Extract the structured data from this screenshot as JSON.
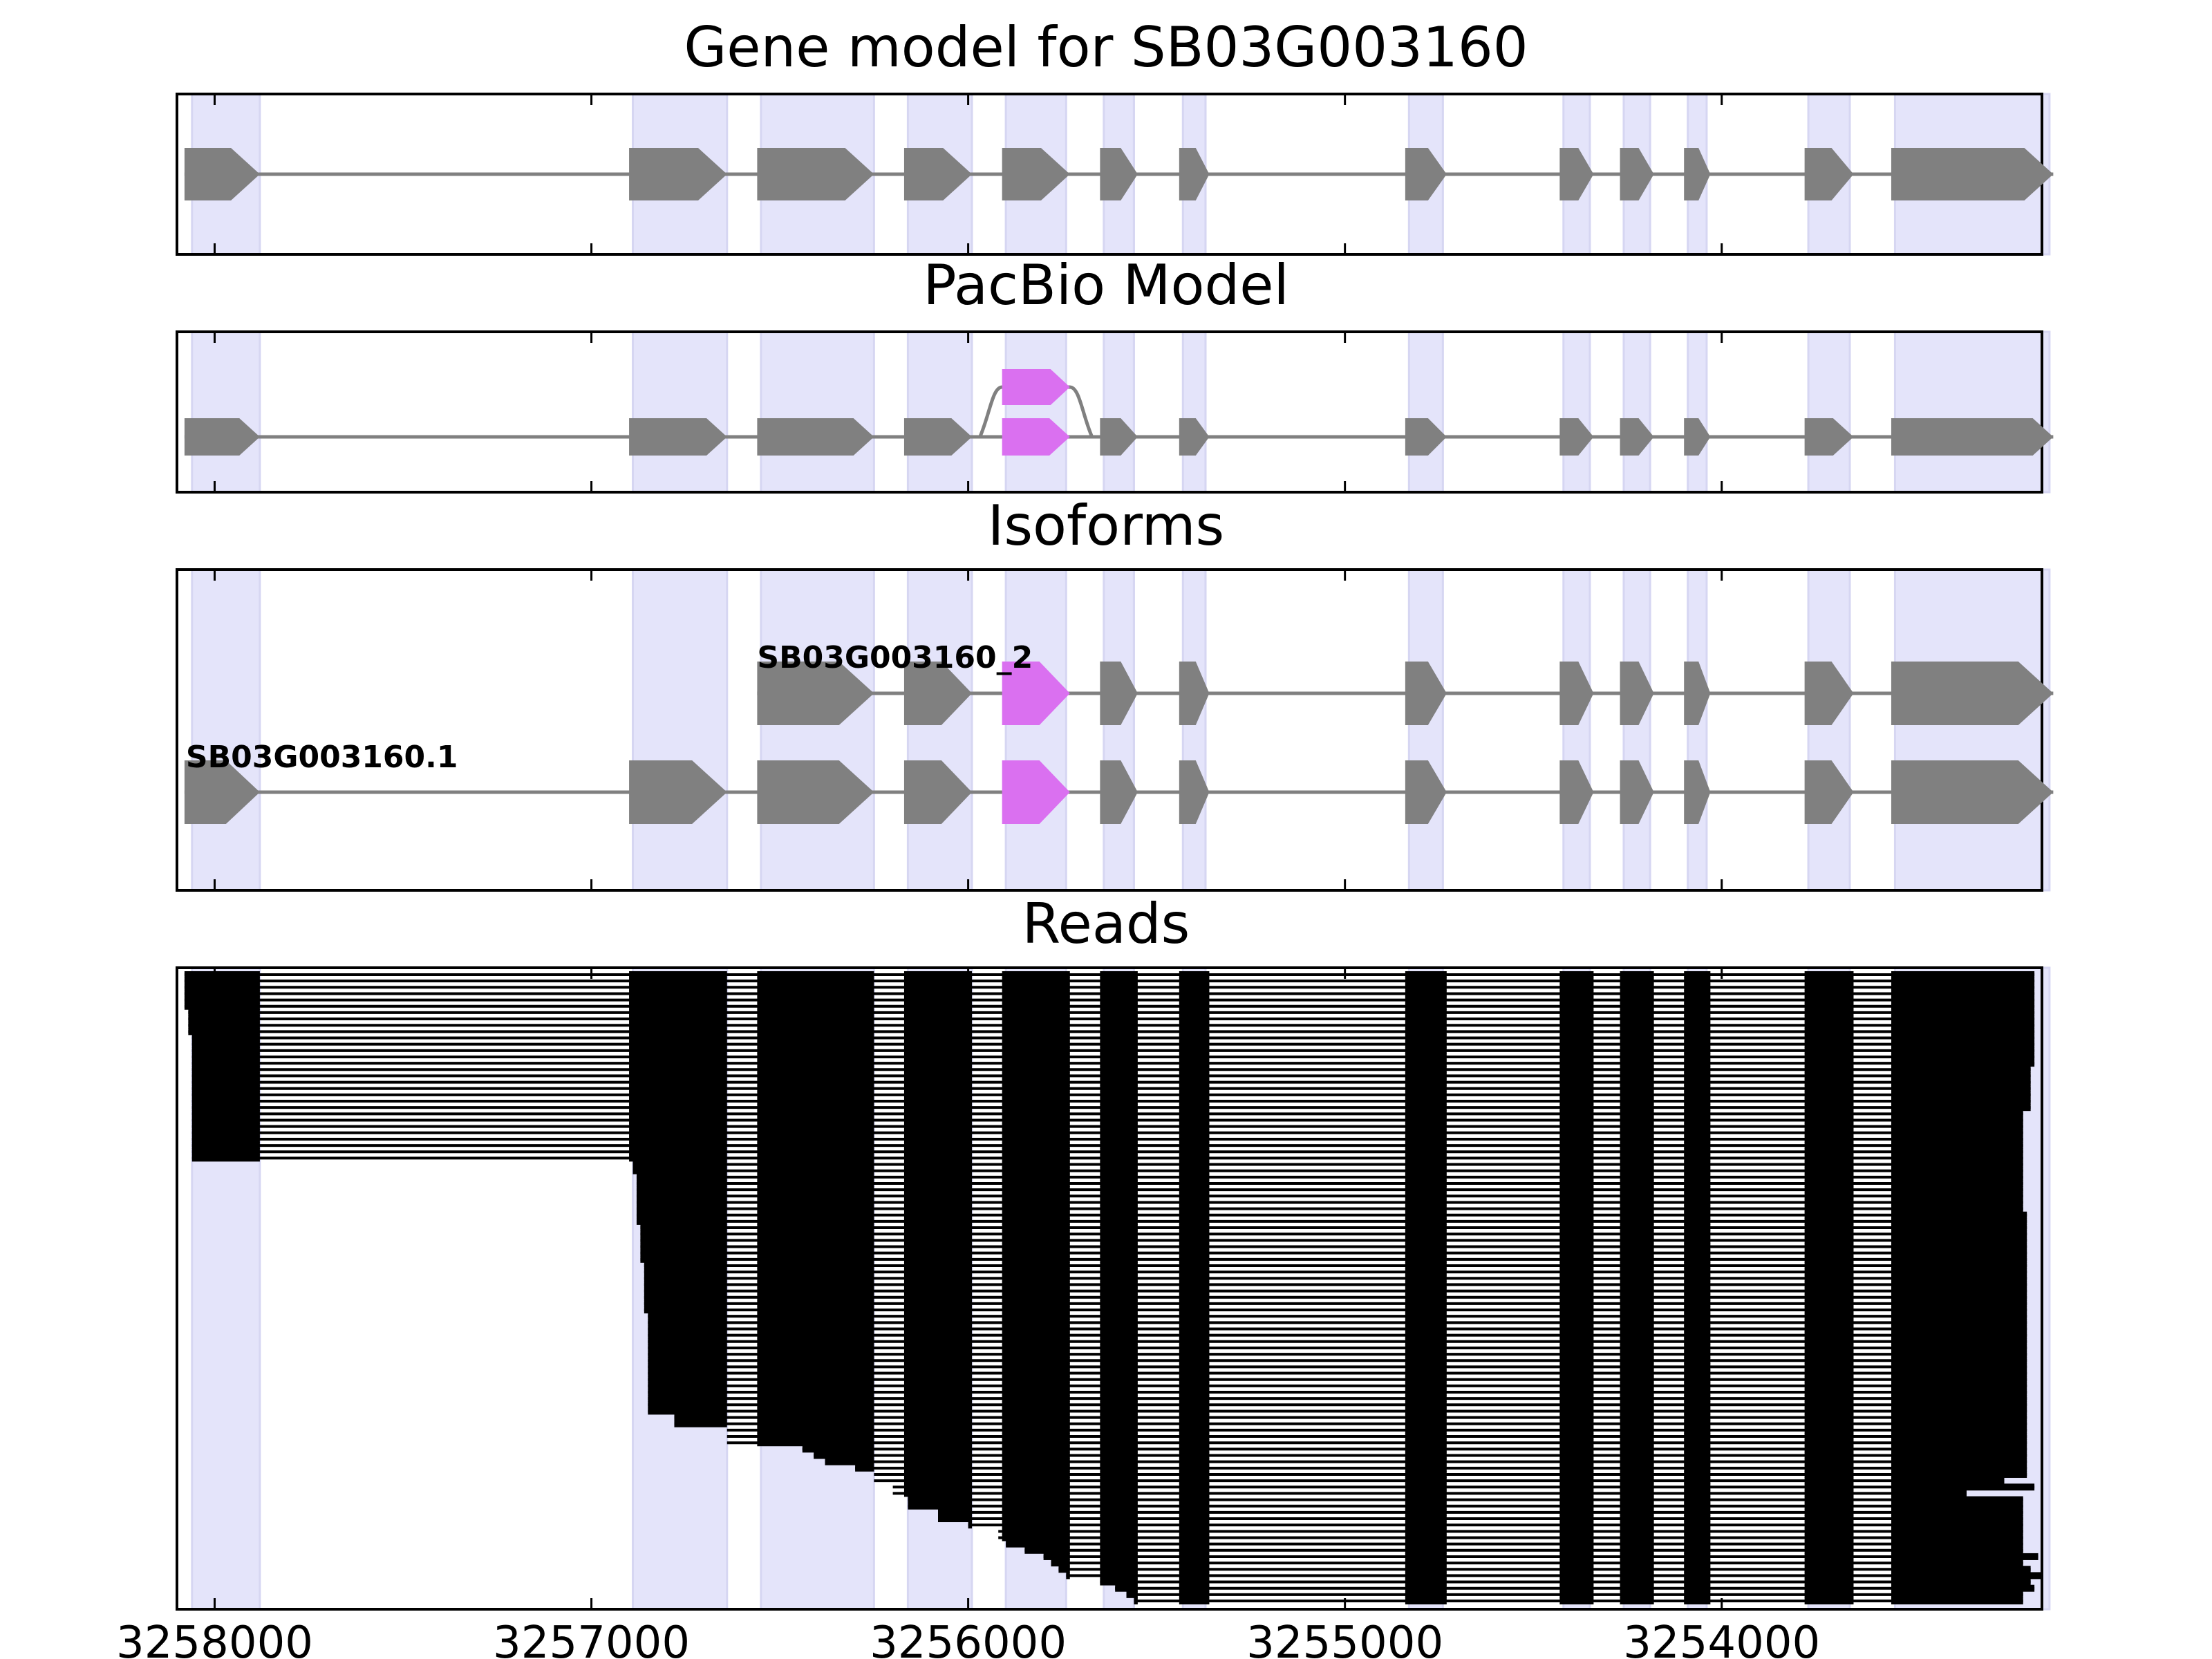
{
  "figure": {
    "gene_id": "SB03G003160",
    "xaxis": {
      "min": 3258100,
      "max": 3253150,
      "reversed": true,
      "ticks": [
        3258000,
        3257000,
        3256000,
        3255000,
        3254000
      ],
      "tick_labels": [
        "3258000",
        "3257000",
        "3256000",
        "3255000",
        "3254000"
      ]
    },
    "colors": {
      "exon": "#808080",
      "intron": "#808080",
      "alt_exon": "#DA70F0",
      "highlight": "#E4E4FA",
      "read": "#000000",
      "frame": "#000000"
    },
    "highlight_regions": [
      [
        3258060,
        3257880
      ],
      [
        3256890,
        3256640
      ],
      [
        3256550,
        3256250
      ],
      [
        3256160,
        3255990
      ],
      [
        3255900,
        3255740
      ],
      [
        3255640,
        3255560
      ],
      [
        3255430,
        3255370
      ],
      [
        3254830,
        3254740
      ],
      [
        3254420,
        3254350
      ],
      [
        3254260,
        3254190
      ],
      [
        3254090,
        3254040
      ],
      [
        3253770,
        3253660
      ],
      [
        3253540,
        3253130
      ]
    ]
  },
  "panels": {
    "gene_model": {
      "title": "Gene model for SB03G003160",
      "transcripts": [
        {
          "strand": "-",
          "exons": [
            [
              3258080,
              3257880
            ],
            [
              3256900,
              3256640
            ],
            [
              3256560,
              3256250
            ],
            [
              3256170,
              3255990
            ],
            [
              3255910,
              3255730
            ],
            [
              3255650,
              3255550
            ],
            [
              3255440,
              3255360
            ],
            [
              3254840,
              3254730
            ],
            [
              3254430,
              3254340
            ],
            [
              3254270,
              3254180
            ],
            [
              3254100,
              3254030
            ],
            [
              3253780,
              3253650
            ],
            [
              3253550,
              3253120
            ]
          ]
        }
      ]
    },
    "pacbio": {
      "title": "PacBio Model",
      "exons": [
        [
          3258080,
          3257880
        ],
        [
          3256900,
          3256640
        ],
        [
          3256560,
          3256250
        ],
        [
          3256170,
          3255990
        ],
        [
          3255910,
          3255730
        ],
        [
          3255650,
          3255550
        ],
        [
          3255440,
          3255360
        ],
        [
          3254840,
          3254730
        ],
        [
          3254430,
          3254340
        ],
        [
          3254270,
          3254180
        ],
        [
          3254100,
          3254030
        ],
        [
          3253780,
          3253650
        ],
        [
          3253550,
          3253120
        ]
      ],
      "alt_exon": [
        3255910,
        3255730
      ],
      "alt_exon_index": 4
    },
    "isoforms": {
      "title": "Isoforms",
      "transcripts": [
        {
          "label": "SB03G003160_2",
          "exons": [
            [
              3256560,
              3256250
            ],
            [
              3256170,
              3255990
            ],
            [
              3255910,
              3255730
            ],
            [
              3255650,
              3255550
            ],
            [
              3255440,
              3255360
            ],
            [
              3254840,
              3254730
            ],
            [
              3254430,
              3254340
            ],
            [
              3254270,
              3254180
            ],
            [
              3254100,
              3254030
            ],
            [
              3253780,
              3253650
            ],
            [
              3253550,
              3253120
            ]
          ],
          "alt_exon_index": 2
        },
        {
          "label": "SB03G003160.1",
          "exons": [
            [
              3258080,
              3257880
            ],
            [
              3256900,
              3256640
            ],
            [
              3256560,
              3256250
            ],
            [
              3256170,
              3255990
            ],
            [
              3255910,
              3255730
            ],
            [
              3255650,
              3255550
            ],
            [
              3255440,
              3255360
            ],
            [
              3254840,
              3254730
            ],
            [
              3254430,
              3254340
            ],
            [
              3254270,
              3254180
            ],
            [
              3254100,
              3254030
            ],
            [
              3253780,
              3253650
            ],
            [
              3253550,
              3253120
            ]
          ],
          "alt_exon_index": 4
        }
      ]
    },
    "reads": {
      "title": "Reads",
      "read_count": 100,
      "row_starts": [
        3258080,
        3258080,
        3258080,
        3258080,
        3258080,
        3258080,
        3258070,
        3258070,
        3258070,
        3258070,
        3258060,
        3258060,
        3258060,
        3258060,
        3258060,
        3258060,
        3258060,
        3258060,
        3258060,
        3258060,
        3258060,
        3258060,
        3258060,
        3258060,
        3258060,
        3258060,
        3258060,
        3258060,
        3258060,
        3258060,
        3256890,
        3256890,
        3256880,
        3256880,
        3256880,
        3256880,
        3256880,
        3256880,
        3256880,
        3256880,
        3256870,
        3256870,
        3256870,
        3256870,
        3256870,
        3256870,
        3256860,
        3256860,
        3256860,
        3256860,
        3256860,
        3256860,
        3256860,
        3256860,
        3256850,
        3256850,
        3256850,
        3256850,
        3256850,
        3256850,
        3256850,
        3256850,
        3256850,
        3256850,
        3256850,
        3256850,
        3256850,
        3256850,
        3256850,
        3256850,
        3256780,
        3256780,
        3256640,
        3256640,
        3256640,
        3256440,
        3256410,
        3256380,
        3256300,
        3256250,
        3256250,
        3256200,
        3256200,
        3256160,
        3256160,
        3256080,
        3256080,
        3256000,
        3255920,
        3255920,
        3255900,
        3255850,
        3255800,
        3255780,
        3255760,
        3255740,
        3255650,
        3255610,
        3255580,
        3255560
      ],
      "row_ends": [
        3253170,
        3253170,
        3253170,
        3253170,
        3253170,
        3253170,
        3253170,
        3253170,
        3253170,
        3253170,
        3253170,
        3253170,
        3253170,
        3253170,
        3253170,
        3253180,
        3253180,
        3253180,
        3253180,
        3253180,
        3253180,
        3253180,
        3253200,
        3253200,
        3253200,
        3253200,
        3253200,
        3253200,
        3253200,
        3253200,
        3253200,
        3253200,
        3253200,
        3253200,
        3253200,
        3253200,
        3253200,
        3253200,
        3253190,
        3253190,
        3253190,
        3253190,
        3253190,
        3253190,
        3253190,
        3253190,
        3253190,
        3253190,
        3253190,
        3253190,
        3253190,
        3253190,
        3253190,
        3253190,
        3253190,
        3253190,
        3253190,
        3253190,
        3253190,
        3253190,
        3253190,
        3253190,
        3253190,
        3253190,
        3253190,
        3253190,
        3253190,
        3253190,
        3253190,
        3253190,
        3253190,
        3253190,
        3253190,
        3253190,
        3253190,
        3253190,
        3253190,
        3253190,
        3253190,
        3253190,
        3253250,
        3253170,
        3253350,
        3253200,
        3253200,
        3253200,
        3253200,
        3253200,
        3253200,
        3253200,
        3253200,
        3253200,
        3253160,
        3253200,
        3253180,
        3253150,
        3253180,
        3253170,
        3253200,
        3253200
      ]
    }
  }
}
